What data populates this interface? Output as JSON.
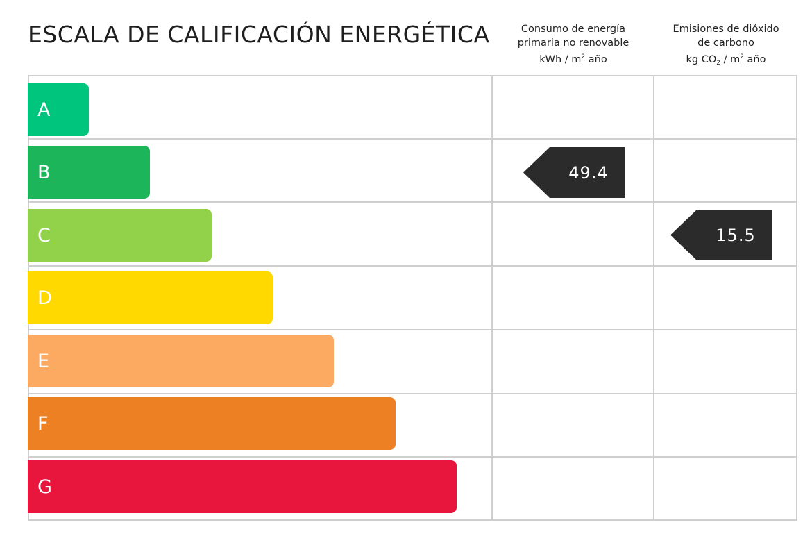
{
  "title": "ESCALA DE CALIFICACIÓN ENERGÉTICA",
  "columns": {
    "energy": {
      "line1": "Consumo de energía",
      "line2": "primaria no renovable",
      "unit_pre": "kWh / m",
      "unit_sup": "2",
      "unit_post": " año"
    },
    "co2": {
      "line1": "Emisiones de dióxido",
      "line2": "de carbono",
      "unit_pre": "kg CO",
      "unit_sub": "2",
      "unit_mid": " / m",
      "unit_sup": "2",
      "unit_post": " año"
    }
  },
  "grades": [
    {
      "label": "A",
      "color": "#00c57c"
    },
    {
      "label": "B",
      "color": "#1db559"
    },
    {
      "label": "C",
      "color": "#92d14a"
    },
    {
      "label": "D",
      "color": "#ffd900"
    },
    {
      "label": "E",
      "color": "#fca962"
    },
    {
      "label": "F",
      "color": "#ee8024"
    },
    {
      "label": "G",
      "color": "#e8163c"
    }
  ],
  "ratings": {
    "energy": {
      "grade": "B",
      "value": "49.4"
    },
    "co2": {
      "grade": "C",
      "value": "15.5"
    }
  },
  "tag_color": "#2b2b2b"
}
